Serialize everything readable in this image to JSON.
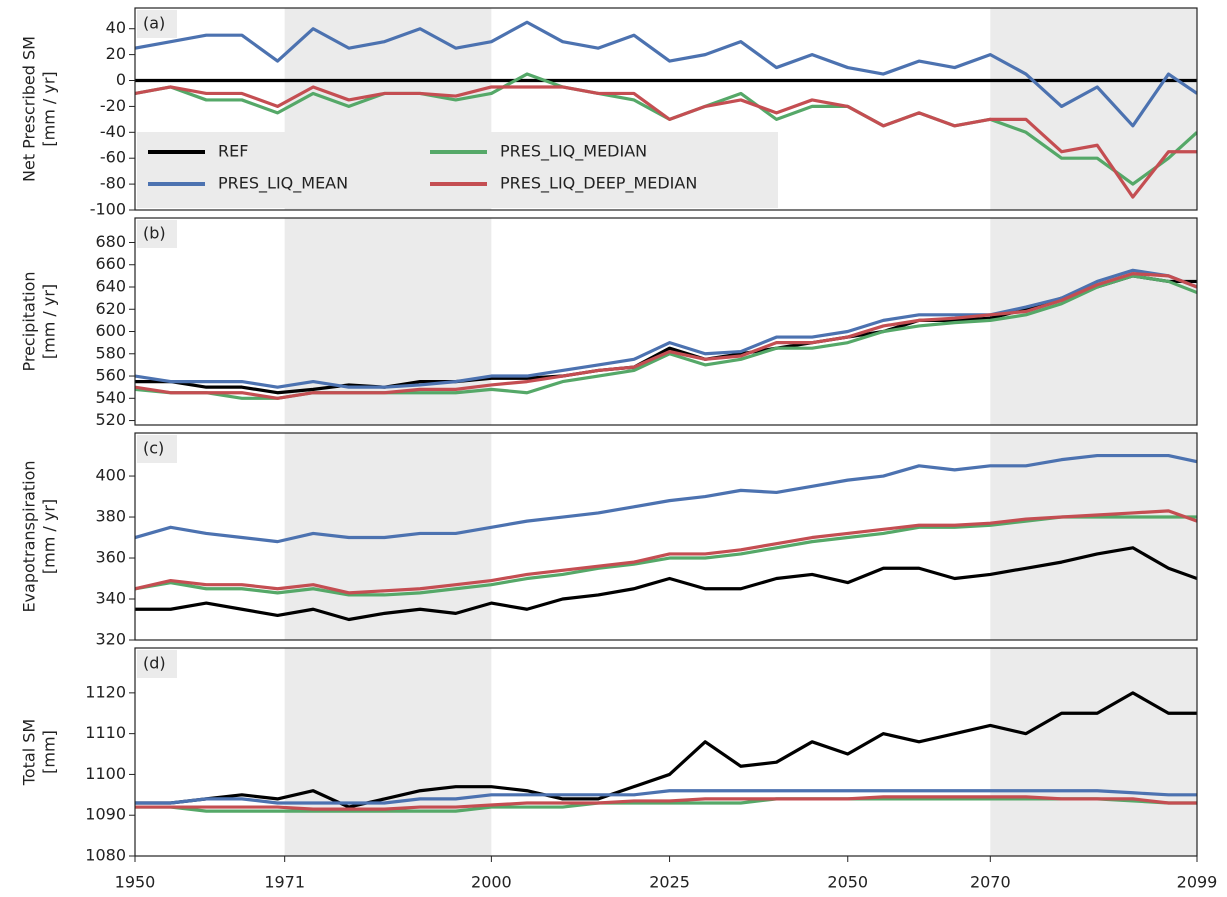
{
  "chart_data": [
    {
      "type": "line",
      "panel_label": "(a)",
      "ylabel": [
        "Net Prescribed SM",
        "[mm / yr]"
      ],
      "x": [
        1950,
        1955,
        1960,
        1965,
        1970,
        1975,
        1980,
        1985,
        1990,
        1995,
        2000,
        2005,
        2010,
        2015,
        2020,
        2025,
        2030,
        2035,
        2040,
        2045,
        2050,
        2055,
        2060,
        2065,
        2070,
        2075,
        2080,
        2085,
        2090,
        2095,
        2099
      ],
      "xlim": [
        1950,
        2099
      ],
      "ylim": [
        -100,
        56
      ],
      "yticks": [
        -100,
        -80,
        -60,
        -40,
        -20,
        0,
        20,
        40
      ],
      "shaded_spans": [
        [
          1971,
          2000
        ],
        [
          2070,
          2099
        ]
      ],
      "legend": "lower left",
      "series": [
        {
          "name": "REF",
          "color": "#000000",
          "values": [
            0,
            0,
            0,
            0,
            0,
            0,
            0,
            0,
            0,
            0,
            0,
            0,
            0,
            0,
            0,
            0,
            0,
            0,
            0,
            0,
            0,
            0,
            0,
            0,
            0,
            0,
            0,
            0,
            0,
            0,
            0
          ]
        },
        {
          "name": "PRES_LIQ_MEAN",
          "color": "#4c72b0",
          "values": [
            25,
            30,
            35,
            35,
            15,
            40,
            25,
            30,
            40,
            25,
            30,
            45,
            30,
            25,
            35,
            15,
            20,
            30,
            10,
            20,
            10,
            5,
            15,
            10,
            20,
            5,
            -20,
            -5,
            -35,
            5,
            -10
          ]
        },
        {
          "name": "PRES_LIQ_MEDIAN",
          "color": "#55a868",
          "values": [
            -10,
            -5,
            -15,
            -15,
            -25,
            -10,
            -20,
            -10,
            -10,
            -15,
            -10,
            5,
            -5,
            -10,
            -15,
            -30,
            -20,
            -10,
            -30,
            -20,
            -20,
            -35,
            -25,
            -35,
            -30,
            -40,
            -60,
            -60,
            -80,
            -60,
            -40
          ]
        },
        {
          "name": "PRES_LIQ_DEEP_MEDIAN",
          "color": "#c44e52",
          "values": [
            -10,
            -5,
            -10,
            -10,
            -20,
            -5,
            -15,
            -10,
            -10,
            -12,
            -5,
            -5,
            -5,
            -10,
            -10,
            -30,
            -20,
            -15,
            -25,
            -15,
            -20,
            -35,
            -25,
            -35,
            -30,
            -30,
            -55,
            -50,
            -90,
            -55,
            -55
          ]
        }
      ]
    },
    {
      "type": "line",
      "panel_label": "(b)",
      "ylabel": [
        "Precipitation",
        "[mm / yr]"
      ],
      "x": [
        1950,
        1955,
        1960,
        1965,
        1970,
        1975,
        1980,
        1985,
        1990,
        1995,
        2000,
        2005,
        2010,
        2015,
        2020,
        2025,
        2030,
        2035,
        2040,
        2045,
        2050,
        2055,
        2060,
        2065,
        2070,
        2075,
        2080,
        2085,
        2090,
        2095,
        2099
      ],
      "xlim": [
        1950,
        2099
      ],
      "ylim": [
        516,
        702
      ],
      "yticks": [
        520,
        540,
        560,
        580,
        600,
        620,
        640,
        660,
        680
      ],
      "shaded_spans": [
        [
          1971,
          2000
        ],
        [
          2070,
          2099
        ]
      ],
      "series": [
        {
          "name": "REF",
          "color": "#000000",
          "values": [
            555,
            555,
            550,
            550,
            545,
            548,
            552,
            550,
            555,
            555,
            558,
            558,
            560,
            565,
            568,
            585,
            575,
            580,
            585,
            590,
            595,
            600,
            610,
            610,
            612,
            620,
            630,
            640,
            650,
            645,
            645
          ]
        },
        {
          "name": "PRES_LIQ_MEAN",
          "color": "#4c72b0",
          "values": [
            560,
            555,
            555,
            555,
            550,
            555,
            550,
            550,
            552,
            555,
            560,
            560,
            565,
            570,
            575,
            590,
            580,
            582,
            595,
            595,
            600,
            610,
            615,
            615,
            615,
            622,
            630,
            645,
            655,
            650,
            640
          ]
        },
        {
          "name": "PRES_LIQ_MEDIAN",
          "color": "#55a868",
          "values": [
            548,
            545,
            545,
            540,
            540,
            545,
            545,
            545,
            545,
            545,
            548,
            545,
            555,
            560,
            565,
            580,
            570,
            575,
            585,
            585,
            590,
            600,
            605,
            608,
            610,
            615,
            625,
            640,
            650,
            645,
            635
          ]
        },
        {
          "name": "PRES_LIQ_DEEP_MEDIAN",
          "color": "#c44e52",
          "values": [
            550,
            545,
            545,
            545,
            540,
            545,
            545,
            545,
            548,
            548,
            552,
            555,
            560,
            565,
            568,
            582,
            575,
            578,
            590,
            590,
            595,
            605,
            610,
            612,
            615,
            618,
            628,
            642,
            652,
            650,
            640
          ]
        }
      ]
    },
    {
      "type": "line",
      "panel_label": "(c)",
      "ylabel": [
        "Evapotranspiration",
        "[mm / yr]"
      ],
      "x": [
        1950,
        1955,
        1960,
        1965,
        1970,
        1975,
        1980,
        1985,
        1990,
        1995,
        2000,
        2005,
        2010,
        2015,
        2020,
        2025,
        2030,
        2035,
        2040,
        2045,
        2050,
        2055,
        2060,
        2065,
        2070,
        2075,
        2080,
        2085,
        2090,
        2095,
        2099
      ],
      "xlim": [
        1950,
        2099
      ],
      "ylim": [
        320,
        421
      ],
      "yticks": [
        320,
        340,
        360,
        380,
        400
      ],
      "shaded_spans": [
        [
          1971,
          2000
        ],
        [
          2070,
          2099
        ]
      ],
      "series": [
        {
          "name": "REF",
          "color": "#000000",
          "values": [
            335,
            335,
            338,
            335,
            332,
            335,
            330,
            333,
            335,
            333,
            338,
            335,
            340,
            342,
            345,
            350,
            345,
            345,
            350,
            352,
            348,
            355,
            355,
            350,
            352,
            355,
            358,
            362,
            365,
            355,
            350
          ]
        },
        {
          "name": "PRES_LIQ_MEAN",
          "color": "#4c72b0",
          "values": [
            370,
            375,
            372,
            370,
            368,
            372,
            370,
            370,
            372,
            372,
            375,
            378,
            380,
            382,
            385,
            388,
            390,
            393,
            392,
            395,
            398,
            400,
            405,
            403,
            405,
            405,
            408,
            410,
            410,
            410,
            407
          ]
        },
        {
          "name": "PRES_LIQ_MEDIAN",
          "color": "#55a868",
          "values": [
            345,
            348,
            345,
            345,
            343,
            345,
            342,
            342,
            343,
            345,
            347,
            350,
            352,
            355,
            357,
            360,
            360,
            362,
            365,
            368,
            370,
            372,
            375,
            375,
            376,
            378,
            380,
            380,
            380,
            380,
            380
          ]
        },
        {
          "name": "PRES_LIQ_DEEP_MEDIAN",
          "color": "#c44e52",
          "values": [
            345,
            349,
            347,
            347,
            345,
            347,
            343,
            344,
            345,
            347,
            349,
            352,
            354,
            356,
            358,
            362,
            362,
            364,
            367,
            370,
            372,
            374,
            376,
            376,
            377,
            379,
            380,
            381,
            382,
            383,
            378
          ]
        }
      ]
    },
    {
      "type": "line",
      "panel_label": "(d)",
      "ylabel": [
        "Total SM",
        "[mm]"
      ],
      "x": [
        1950,
        1955,
        1960,
        1965,
        1970,
        1975,
        1980,
        1985,
        1990,
        1995,
        2000,
        2005,
        2010,
        2015,
        2020,
        2025,
        2030,
        2035,
        2040,
        2045,
        2050,
        2055,
        2060,
        2065,
        2070,
        2075,
        2080,
        2085,
        2090,
        2095,
        2099
      ],
      "xlim": [
        1950,
        2099
      ],
      "ylim": [
        1080,
        1131
      ],
      "yticks": [
        1080,
        1090,
        1100,
        1110,
        1120
      ],
      "xticks": [
        1950,
        1971,
        2000,
        2025,
        2050,
        2070,
        2099
      ],
      "shaded_spans": [
        [
          1971,
          2000
        ],
        [
          2070,
          2099
        ]
      ],
      "series": [
        {
          "name": "REF",
          "color": "#000000",
          "values": [
            1093,
            1093,
            1094,
            1095,
            1094,
            1096,
            1092,
            1094,
            1096,
            1097,
            1097,
            1096,
            1094,
            1094,
            1097,
            1100,
            1108,
            1102,
            1103,
            1108,
            1105,
            1110,
            1108,
            1110,
            1112,
            1110,
            1115,
            1115,
            1120,
            1115,
            1115
          ]
        },
        {
          "name": "PRES_LIQ_MEAN",
          "color": "#4c72b0",
          "values": [
            1093,
            1093,
            1094,
            1094,
            1093,
            1093,
            1093,
            1093,
            1094,
            1094,
            1095,
            1095,
            1095,
            1095,
            1095,
            1096,
            1096,
            1096,
            1096,
            1096,
            1096,
            1096,
            1096,
            1096,
            1096,
            1096,
            1096,
            1096,
            1095.5,
            1095,
            1095
          ]
        },
        {
          "name": "PRES_LIQ_MEDIAN",
          "color": "#55a868",
          "values": [
            1092,
            1092,
            1091,
            1091,
            1091,
            1091,
            1091,
            1091,
            1091,
            1091,
            1092,
            1092,
            1092,
            1093,
            1093,
            1093,
            1093,
            1093,
            1094,
            1094,
            1094,
            1094,
            1094,
            1094,
            1094,
            1094,
            1094,
            1094,
            1093.5,
            1093,
            1093
          ]
        },
        {
          "name": "PRES_LIQ_DEEP_MEDIAN",
          "color": "#c44e52",
          "values": [
            1092,
            1092,
            1092,
            1092,
            1092,
            1091.5,
            1091.5,
            1091.5,
            1092,
            1092,
            1092.5,
            1093,
            1093,
            1093,
            1093.5,
            1093.5,
            1094,
            1094,
            1094,
            1094,
            1094,
            1094.5,
            1094.5,
            1094.5,
            1094.5,
            1094.5,
            1094,
            1094,
            1094,
            1093,
            1093
          ]
        }
      ]
    }
  ]
}
